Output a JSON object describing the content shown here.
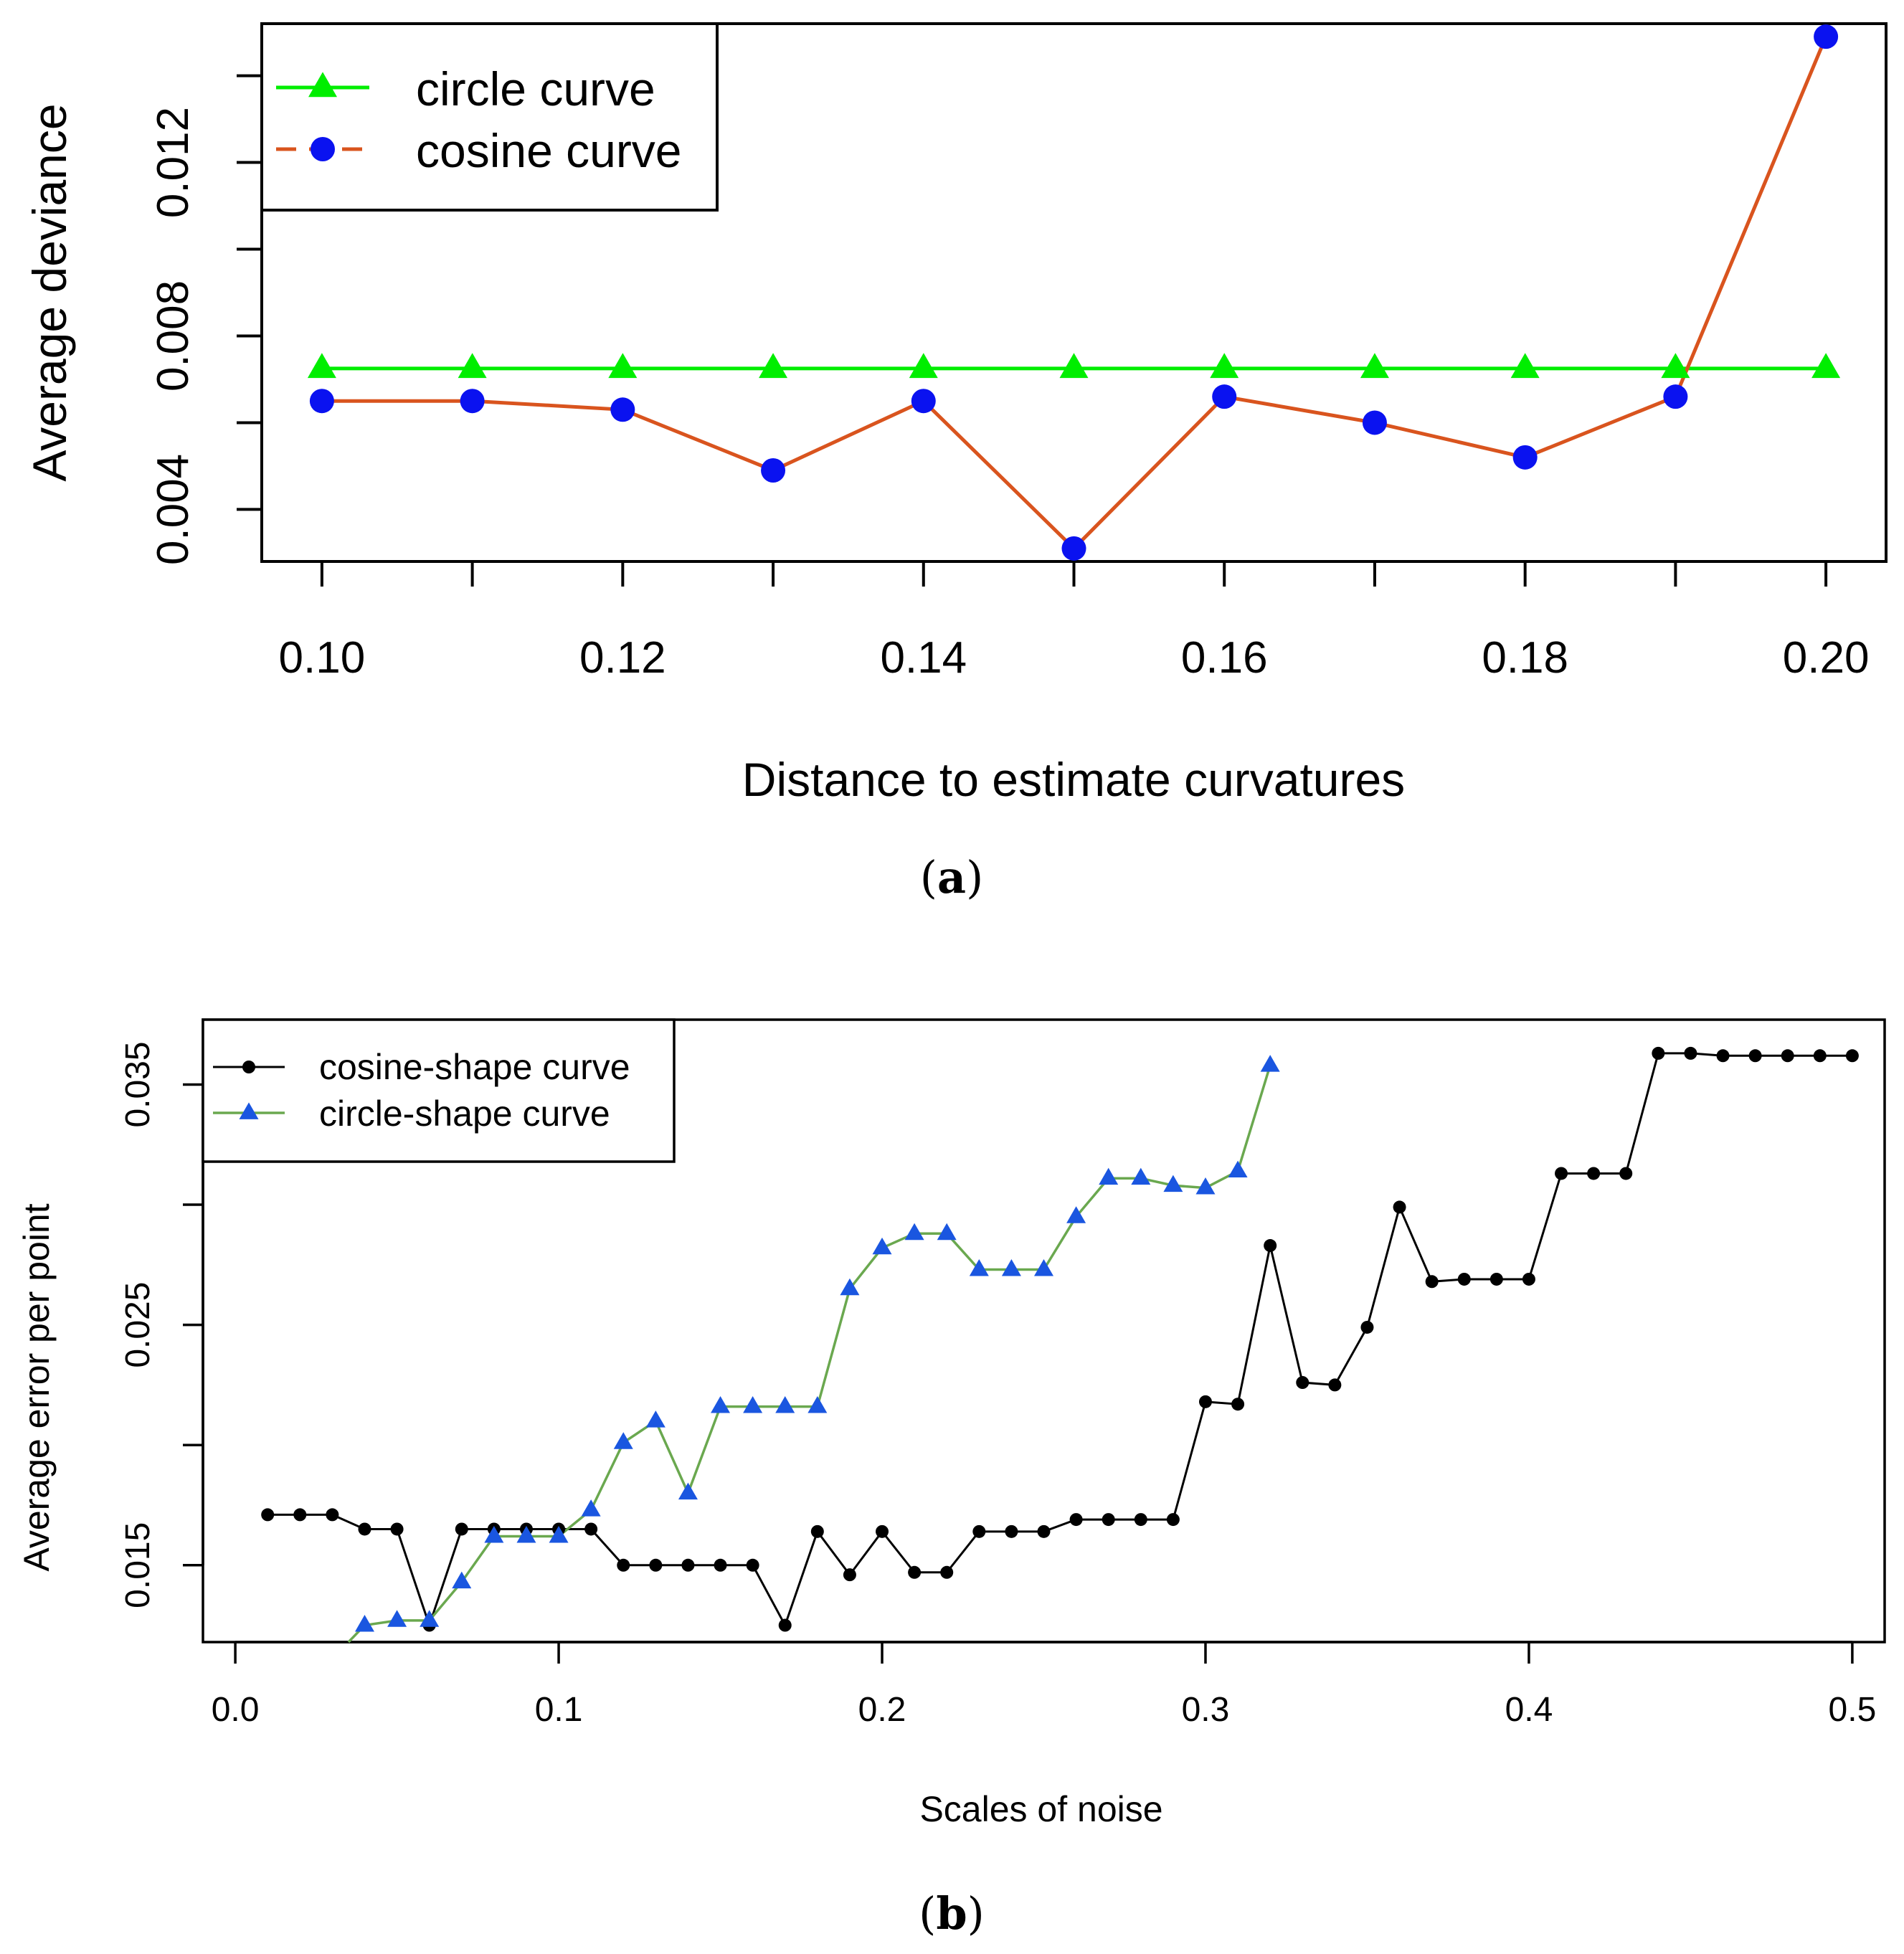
{
  "chart_data": [
    {
      "type": "line",
      "panel_label": "a",
      "title": "",
      "xlabel": "Distance to estimate curvatures",
      "ylabel": "Average deviance",
      "xlim": [
        0.096,
        0.204
      ],
      "ylim": [
        0.0028,
        0.0152
      ],
      "x_ticks": [
        0.1,
        0.12,
        0.14,
        0.16,
        0.18,
        0.2
      ],
      "x_tick_labels": [
        "0.10",
        "0.12",
        "0.14",
        "0.16",
        "0.18",
        "0.20"
      ],
      "x_minor_ticks": [
        0.11,
        0.13,
        0.15,
        0.17,
        0.19
      ],
      "y_ticks": [
        0.004,
        0.006,
        0.008,
        0.01,
        0.012,
        0.014
      ],
      "y_tick_labels": [
        "0.004",
        "",
        "0.008",
        "",
        "0.012",
        ""
      ],
      "legend_position": "top-left",
      "x": [
        0.1,
        0.11,
        0.12,
        0.13,
        0.14,
        0.15,
        0.16,
        0.17,
        0.18,
        0.19,
        0.2
      ],
      "series": [
        {
          "name": "circle curve",
          "marker": "triangle",
          "line_color": "#00ee00",
          "marker_color": "#00ee00",
          "line_style": "solid",
          "values": [
            0.00725,
            0.00725,
            0.00725,
            0.00725,
            0.00725,
            0.00725,
            0.00725,
            0.00725,
            0.00725,
            0.00725,
            0.00725
          ]
        },
        {
          "name": "cosine curve",
          "marker": "circle",
          "line_color": "#d9541e",
          "marker_color": "#0a12f0",
          "line_style": "dashed-legend",
          "values": [
            0.0065,
            0.0065,
            0.0063,
            0.0049,
            0.0065,
            0.0031,
            0.0066,
            0.006,
            0.0052,
            0.0066,
            0.0149
          ]
        }
      ]
    },
    {
      "type": "line",
      "panel_label": "b",
      "title": "",
      "xlabel": "Scales of noise",
      "ylabel": "Average error per point",
      "xlim": [
        -0.01,
        0.51
      ],
      "ylim": [
        0.0118,
        0.0377
      ],
      "x_ticks": [
        0.0,
        0.1,
        0.2,
        0.3,
        0.4,
        0.5
      ],
      "x_tick_labels": [
        "0.0",
        "0.1",
        "0.2",
        "0.3",
        "0.4",
        "0.5"
      ],
      "y_ticks": [
        0.015,
        0.02,
        0.025,
        0.03,
        0.035
      ],
      "y_tick_labels": [
        "0.015",
        "",
        "0.025",
        "",
        "0.035"
      ],
      "legend_position": "top-left",
      "series": [
        {
          "name": "cosine-shape curve",
          "marker": "dot",
          "line_color": "#000000",
          "marker_color": "#000000",
          "x": [
            0.01,
            0.02,
            0.03,
            0.04,
            0.05,
            0.06,
            0.07,
            0.08,
            0.09,
            0.1,
            0.11,
            0.12,
            0.13,
            0.14,
            0.15,
            0.16,
            0.17,
            0.18,
            0.19,
            0.2,
            0.21,
            0.22,
            0.23,
            0.24,
            0.25,
            0.26,
            0.27,
            0.28,
            0.29,
            0.3,
            0.31,
            0.32,
            0.33,
            0.34,
            0.35,
            0.36,
            0.37,
            0.38,
            0.39,
            0.4,
            0.41,
            0.42,
            0.43,
            0.44,
            0.45,
            0.46,
            0.47,
            0.48,
            0.49,
            0.5
          ],
          "values": [
            0.0171,
            0.0171,
            0.0171,
            0.0165,
            0.0165,
            0.0125,
            0.0165,
            0.0165,
            0.0165,
            0.0165,
            0.0165,
            0.015,
            0.015,
            0.015,
            0.015,
            0.015,
            0.0125,
            0.0164,
            0.0146,
            0.0164,
            0.0147,
            0.0147,
            0.0164,
            0.0164,
            0.0164,
            0.0169,
            0.0169,
            0.0169,
            0.0169,
            0.0218,
            0.0217,
            0.0283,
            0.0226,
            0.0225,
            0.0249,
            0.0299,
            0.0268,
            0.0269,
            0.0269,
            0.0269,
            0.0313,
            0.0313,
            0.0313,
            0.0363,
            0.0363,
            0.0362,
            0.0362,
            0.0362,
            0.0362,
            0.0362
          ]
        },
        {
          "name": "circle-shape curve",
          "marker": "triangle",
          "line_color": "#6aa84f",
          "marker_color": "#1a56e0",
          "x": [
            0.04,
            0.05,
            0.06,
            0.07,
            0.08,
            0.09,
            0.1,
            0.11,
            0.12,
            0.13,
            0.14,
            0.15,
            0.16,
            0.17,
            0.18,
            0.19,
            0.2,
            0.21,
            0.22,
            0.23,
            0.24,
            0.25,
            0.26,
            0.27,
            0.28,
            0.29,
            0.3,
            0.31,
            0.32
          ],
          "values": [
            0.0125,
            0.0127,
            0.0127,
            0.0143,
            0.0162,
            0.0162,
            0.0162,
            0.0173,
            0.0201,
            0.021,
            0.018,
            0.0216,
            0.0216,
            0.0216,
            0.0216,
            0.0265,
            0.0282,
            0.0288,
            0.0288,
            0.0273,
            0.0273,
            0.0273,
            0.0295,
            0.0311,
            0.0311,
            0.0308,
            0.0307,
            0.0314,
            0.0358
          ],
          "lead_in_from": {
            "x": 0.035,
            "value": 0.0118
          }
        }
      ]
    }
  ]
}
